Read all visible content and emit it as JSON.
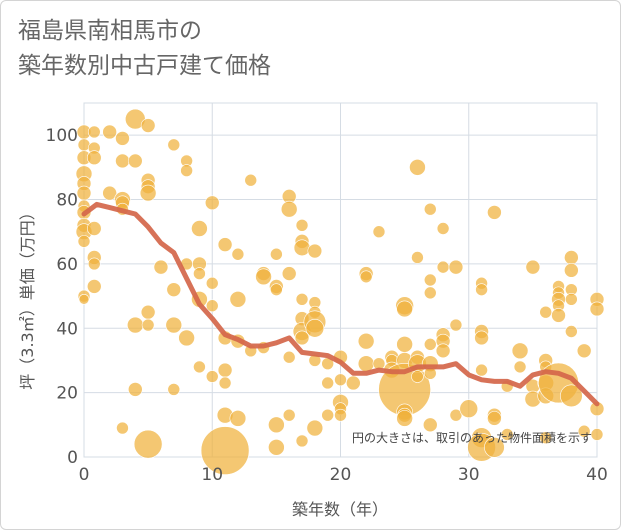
{
  "chart_data": {
    "type": "scatter",
    "title_lines": [
      "福島県南相馬市の",
      "築年数別中古戸建て価格"
    ],
    "xlabel": "築年数（年）",
    "ylabel": "坪（3.3㎡）単価（万円）",
    "xlim": [
      0,
      40
    ],
    "ylim": [
      0,
      110
    ],
    "xticks": [
      0,
      10,
      20,
      30,
      40
    ],
    "yticks": [
      0,
      20,
      40,
      60,
      80,
      100
    ],
    "grid": true,
    "annotation": "円の大きさは、取引のあった物件面積を示す",
    "colors": {
      "bubble": "#f0b23c",
      "trend": "#d4664a",
      "grid": "#d5dce4"
    },
    "trend": {
      "x": [
        0,
        1,
        2,
        3,
        4,
        5,
        6,
        7,
        8,
        9,
        10,
        11,
        12,
        13,
        14,
        15,
        16,
        17,
        18,
        19,
        20,
        21,
        22,
        23,
        24,
        25,
        26,
        27,
        28,
        29,
        30,
        31,
        32,
        33,
        34,
        35,
        36,
        37,
        38,
        39,
        40
      ],
      "y": [
        75.5,
        78.5,
        77.5,
        76.5,
        75.5,
        71.5,
        66.5,
        63.5,
        55.5,
        47.5,
        43.0,
        38.0,
        36.5,
        34.5,
        34.5,
        35.5,
        37.0,
        32.5,
        32.0,
        31.5,
        29.5,
        26.0,
        26.0,
        27.0,
        26.5,
        26.5,
        28.0,
        28.0,
        28.0,
        29.0,
        25.5,
        24.0,
        23.5,
        23.5,
        22.0,
        25.5,
        26.5,
        26.0,
        24.5,
        20.5,
        16.5
      ]
    },
    "points": [
      {
        "x": 0,
        "y": 101,
        "s": 7
      },
      {
        "x": 0,
        "y": 97,
        "s": 6
      },
      {
        "x": 0,
        "y": 93,
        "s": 7
      },
      {
        "x": 0,
        "y": 88,
        "s": 8
      },
      {
        "x": 0,
        "y": 85,
        "s": 7
      },
      {
        "x": 0,
        "y": 82,
        "s": 7
      },
      {
        "x": 0,
        "y": 78,
        "s": 6
      },
      {
        "x": 0,
        "y": 76,
        "s": 7
      },
      {
        "x": 0,
        "y": 72,
        "s": 7
      },
      {
        "x": 0,
        "y": 70,
        "s": 8
      },
      {
        "x": 0,
        "y": 67,
        "s": 6
      },
      {
        "x": 0,
        "y": 50,
        "s": 6
      },
      {
        "x": 0,
        "y": 49,
        "s": 5
      },
      {
        "x": 0.8,
        "y": 101,
        "s": 6
      },
      {
        "x": 0.8,
        "y": 96,
        "s": 6
      },
      {
        "x": 0.8,
        "y": 93,
        "s": 7
      },
      {
        "x": 0.8,
        "y": 71,
        "s": 7
      },
      {
        "x": 0.8,
        "y": 62,
        "s": 7
      },
      {
        "x": 0.8,
        "y": 60,
        "s": 6
      },
      {
        "x": 0.8,
        "y": 53,
        "s": 7
      },
      {
        "x": 2,
        "y": 101,
        "s": 7
      },
      {
        "x": 2,
        "y": 82,
        "s": 7
      },
      {
        "x": 3,
        "y": 99,
        "s": 7
      },
      {
        "x": 3,
        "y": 92,
        "s": 7
      },
      {
        "x": 3,
        "y": 80,
        "s": 8
      },
      {
        "x": 3,
        "y": 79,
        "s": 7
      },
      {
        "x": 3,
        "y": 77,
        "s": 6
      },
      {
        "x": 3,
        "y": 9,
        "s": 6
      },
      {
        "x": 4,
        "y": 105,
        "s": 10
      },
      {
        "x": 4,
        "y": 92,
        "s": 7
      },
      {
        "x": 4,
        "y": 41,
        "s": 8
      },
      {
        "x": 4,
        "y": 21,
        "s": 7
      },
      {
        "x": 5,
        "y": 103,
        "s": 7
      },
      {
        "x": 5,
        "y": 86,
        "s": 7
      },
      {
        "x": 5,
        "y": 84,
        "s": 7
      },
      {
        "x": 5,
        "y": 82,
        "s": 8
      },
      {
        "x": 5,
        "y": 45,
        "s": 7
      },
      {
        "x": 5,
        "y": 41,
        "s": 6
      },
      {
        "x": 5,
        "y": 4,
        "s": 14
      },
      {
        "x": 6,
        "y": 59,
        "s": 7
      },
      {
        "x": 7,
        "y": 97,
        "s": 6
      },
      {
        "x": 7,
        "y": 52,
        "s": 7
      },
      {
        "x": 7,
        "y": 41,
        "s": 8
      },
      {
        "x": 7,
        "y": 21,
        "s": 6
      },
      {
        "x": 8,
        "y": 92,
        "s": 6
      },
      {
        "x": 8,
        "y": 89,
        "s": 6
      },
      {
        "x": 8,
        "y": 60,
        "s": 6
      },
      {
        "x": 8,
        "y": 37,
        "s": 8
      },
      {
        "x": 9,
        "y": 71,
        "s": 8
      },
      {
        "x": 9,
        "y": 60,
        "s": 7
      },
      {
        "x": 9,
        "y": 57,
        "s": 6
      },
      {
        "x": 9,
        "y": 49,
        "s": 8
      },
      {
        "x": 9,
        "y": 28,
        "s": 6
      },
      {
        "x": 10,
        "y": 79,
        "s": 7
      },
      {
        "x": 10,
        "y": 54,
        "s": 6
      },
      {
        "x": 10,
        "y": 47,
        "s": 6
      },
      {
        "x": 10,
        "y": 25,
        "s": 6
      },
      {
        "x": 11,
        "y": 66,
        "s": 7
      },
      {
        "x": 11,
        "y": 37,
        "s": 7
      },
      {
        "x": 11,
        "y": 27,
        "s": 7
      },
      {
        "x": 11,
        "y": 23,
        "s": 6
      },
      {
        "x": 11,
        "y": 13,
        "s": 8
      },
      {
        "x": 11,
        "y": 2,
        "s": 24
      },
      {
        "x": 12,
        "y": 63,
        "s": 6
      },
      {
        "x": 12,
        "y": 49,
        "s": 8
      },
      {
        "x": 12,
        "y": 36,
        "s": 7
      },
      {
        "x": 12,
        "y": 12,
        "s": 8
      },
      {
        "x": 13,
        "y": 86,
        "s": 6
      },
      {
        "x": 13,
        "y": 33,
        "s": 6
      },
      {
        "x": 14,
        "y": 57,
        "s": 7
      },
      {
        "x": 14,
        "y": 56,
        "s": 8
      },
      {
        "x": 14,
        "y": 34,
        "s": 6
      },
      {
        "x": 15,
        "y": 63,
        "s": 6
      },
      {
        "x": 15,
        "y": 53,
        "s": 7
      },
      {
        "x": 15,
        "y": 52,
        "s": 6
      },
      {
        "x": 15,
        "y": 10,
        "s": 8
      },
      {
        "x": 15,
        "y": 3,
        "s": 8
      },
      {
        "x": 16,
        "y": 81,
        "s": 7
      },
      {
        "x": 16,
        "y": 77,
        "s": 8
      },
      {
        "x": 16,
        "y": 57,
        "s": 7
      },
      {
        "x": 16,
        "y": 31,
        "s": 6
      },
      {
        "x": 16,
        "y": 13,
        "s": 6
      },
      {
        "x": 17,
        "y": 72,
        "s": 6
      },
      {
        "x": 17,
        "y": 67,
        "s": 7
      },
      {
        "x": 17,
        "y": 65,
        "s": 8
      },
      {
        "x": 17,
        "y": 49,
        "s": 6
      },
      {
        "x": 17,
        "y": 43,
        "s": 7
      },
      {
        "x": 17,
        "y": 39,
        "s": 9
      },
      {
        "x": 17,
        "y": 37,
        "s": 7
      },
      {
        "x": 17,
        "y": 5,
        "s": 6
      },
      {
        "x": 18,
        "y": 64,
        "s": 7
      },
      {
        "x": 18,
        "y": 48,
        "s": 6
      },
      {
        "x": 18,
        "y": 45,
        "s": 6
      },
      {
        "x": 18,
        "y": 42,
        "s": 11
      },
      {
        "x": 18,
        "y": 40,
        "s": 9
      },
      {
        "x": 18,
        "y": 30,
        "s": 6
      },
      {
        "x": 18,
        "y": 9,
        "s": 8
      },
      {
        "x": 19,
        "y": 29,
        "s": 6
      },
      {
        "x": 19,
        "y": 23,
        "s": 6
      },
      {
        "x": 19,
        "y": 13,
        "s": 6
      },
      {
        "x": 20,
        "y": 31,
        "s": 7
      },
      {
        "x": 20,
        "y": 24,
        "s": 6
      },
      {
        "x": 20,
        "y": 17,
        "s": 8
      },
      {
        "x": 20,
        "y": 15,
        "s": 6
      },
      {
        "x": 20,
        "y": 13,
        "s": 6
      },
      {
        "x": 21,
        "y": 23,
        "s": 7
      },
      {
        "x": 22,
        "y": 57,
        "s": 7
      },
      {
        "x": 22,
        "y": 56,
        "s": 6
      },
      {
        "x": 22,
        "y": 36,
        "s": 8
      },
      {
        "x": 22,
        "y": 29,
        "s": 8
      },
      {
        "x": 23,
        "y": 70,
        "s": 6
      },
      {
        "x": 23,
        "y": 29,
        "s": 6
      },
      {
        "x": 24,
        "y": 31,
        "s": 7
      },
      {
        "x": 24,
        "y": 30,
        "s": 6
      },
      {
        "x": 24,
        "y": 27,
        "s": 8
      },
      {
        "x": 25,
        "y": 47,
        "s": 9
      },
      {
        "x": 25,
        "y": 46,
        "s": 8
      },
      {
        "x": 25,
        "y": 35,
        "s": 8
      },
      {
        "x": 25,
        "y": 30,
        "s": 8
      },
      {
        "x": 25,
        "y": 21,
        "s": 26
      },
      {
        "x": 25,
        "y": 14,
        "s": 8
      },
      {
        "x": 25,
        "y": 13,
        "s": 7
      },
      {
        "x": 25,
        "y": 12,
        "s": 8
      },
      {
        "x": 26,
        "y": 90,
        "s": 8
      },
      {
        "x": 26,
        "y": 62,
        "s": 6
      },
      {
        "x": 26,
        "y": 31,
        "s": 7
      },
      {
        "x": 26,
        "y": 29,
        "s": 9
      },
      {
        "x": 26,
        "y": 25,
        "s": 6
      },
      {
        "x": 27,
        "y": 77,
        "s": 6
      },
      {
        "x": 27,
        "y": 55,
        "s": 6
      },
      {
        "x": 27,
        "y": 51,
        "s": 6
      },
      {
        "x": 27,
        "y": 35,
        "s": 6
      },
      {
        "x": 27,
        "y": 29,
        "s": 8
      },
      {
        "x": 27,
        "y": 26,
        "s": 6
      },
      {
        "x": 27,
        "y": 10,
        "s": 7
      },
      {
        "x": 28,
        "y": 71,
        "s": 6
      },
      {
        "x": 28,
        "y": 59,
        "s": 6
      },
      {
        "x": 28,
        "y": 38,
        "s": 7
      },
      {
        "x": 28,
        "y": 36,
        "s": 7
      },
      {
        "x": 28,
        "y": 33,
        "s": 7
      },
      {
        "x": 29,
        "y": 59,
        "s": 7
      },
      {
        "x": 29,
        "y": 41,
        "s": 6
      },
      {
        "x": 29,
        "y": 13,
        "s": 6
      },
      {
        "x": 30,
        "y": 15,
        "s": 9
      },
      {
        "x": 31,
        "y": 54,
        "s": 6
      },
      {
        "x": 31,
        "y": 52,
        "s": 6
      },
      {
        "x": 31,
        "y": 39,
        "s": 7
      },
      {
        "x": 31,
        "y": 37,
        "s": 7
      },
      {
        "x": 31,
        "y": 27,
        "s": 6
      },
      {
        "x": 31,
        "y": 6,
        "s": 10
      },
      {
        "x": 31,
        "y": 3,
        "s": 14
      },
      {
        "x": 32,
        "y": 76,
        "s": 7
      },
      {
        "x": 32,
        "y": 13,
        "s": 7
      },
      {
        "x": 32,
        "y": 12,
        "s": 7
      },
      {
        "x": 32,
        "y": 3,
        "s": 10
      },
      {
        "x": 33,
        "y": 22,
        "s": 6
      },
      {
        "x": 33,
        "y": 7,
        "s": 6
      },
      {
        "x": 34,
        "y": 33,
        "s": 8
      },
      {
        "x": 34,
        "y": 28,
        "s": 6
      },
      {
        "x": 35,
        "y": 59,
        "s": 7
      },
      {
        "x": 35,
        "y": 22,
        "s": 7
      },
      {
        "x": 35,
        "y": 18,
        "s": 8
      },
      {
        "x": 36,
        "y": 45,
        "s": 6
      },
      {
        "x": 36,
        "y": 30,
        "s": 7
      },
      {
        "x": 36,
        "y": 28,
        "s": 6
      },
      {
        "x": 36,
        "y": 23,
        "s": 8
      },
      {
        "x": 36,
        "y": 19,
        "s": 8
      },
      {
        "x": 36,
        "y": 6,
        "s": 6
      },
      {
        "x": 37,
        "y": 53,
        "s": 6
      },
      {
        "x": 37,
        "y": 51,
        "s": 6
      },
      {
        "x": 37,
        "y": 49,
        "s": 7
      },
      {
        "x": 37,
        "y": 47,
        "s": 6
      },
      {
        "x": 37,
        "y": 44,
        "s": 7
      },
      {
        "x": 37,
        "y": 23,
        "s": 20
      },
      {
        "x": 38,
        "y": 62,
        "s": 7
      },
      {
        "x": 38,
        "y": 58,
        "s": 7
      },
      {
        "x": 38,
        "y": 52,
        "s": 6
      },
      {
        "x": 38,
        "y": 49,
        "s": 6
      },
      {
        "x": 38,
        "y": 39,
        "s": 6
      },
      {
        "x": 38,
        "y": 19,
        "s": 11
      },
      {
        "x": 39,
        "y": 33,
        "s": 7
      },
      {
        "x": 39,
        "y": 8,
        "s": 6
      },
      {
        "x": 40,
        "y": 49,
        "s": 7
      },
      {
        "x": 40,
        "y": 46,
        "s": 7
      },
      {
        "x": 40,
        "y": 15,
        "s": 7
      },
      {
        "x": 40,
        "y": 7,
        "s": 6
      }
    ]
  }
}
